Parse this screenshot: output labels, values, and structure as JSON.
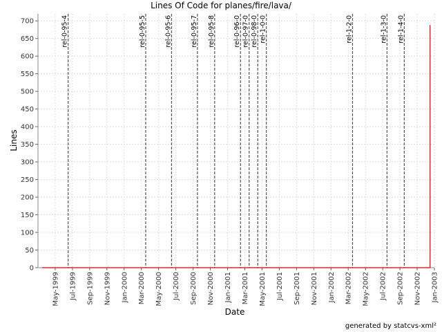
{
  "chart_data": {
    "type": "line",
    "title": "Lines Of Code for planes/fire/lava/",
    "x_label": "Date",
    "y_label": "Lines",
    "footer": "generated by statcvs-xml²",
    "xlim": [
      "1999-03",
      "2003-01"
    ],
    "ylim": [
      0,
      720
    ],
    "xticks": [
      {
        "value": "1999-05",
        "label": "May-1999"
      },
      {
        "value": "1999-07",
        "label": "Jul-1999"
      },
      {
        "value": "1999-09",
        "label": "Sep-1999"
      },
      {
        "value": "1999-11",
        "label": "Nov-1999"
      },
      {
        "value": "2000-01",
        "label": "Jan-2000"
      },
      {
        "value": "2000-03",
        "label": "Mar-2000"
      },
      {
        "value": "2000-05",
        "label": "May-2000"
      },
      {
        "value": "2000-07",
        "label": "Jul-2000"
      },
      {
        "value": "2000-09",
        "label": "Sep-2000"
      },
      {
        "value": "2000-11",
        "label": "Nov-2000"
      },
      {
        "value": "2001-01",
        "label": "Jan-2001"
      },
      {
        "value": "2001-03",
        "label": "Mar-2001"
      },
      {
        "value": "2001-05",
        "label": "May-2001"
      },
      {
        "value": "2001-07",
        "label": "Jul-2001"
      },
      {
        "value": "2001-09",
        "label": "Sep-2001"
      },
      {
        "value": "2001-11",
        "label": "Nov-2001"
      },
      {
        "value": "2002-01",
        "label": "Jan-2002"
      },
      {
        "value": "2002-03",
        "label": "Mar-2002"
      },
      {
        "value": "2002-05",
        "label": "May-2002"
      },
      {
        "value": "2002-07",
        "label": "Jul-2002"
      },
      {
        "value": "2002-09",
        "label": "Sep-2002"
      },
      {
        "value": "2002-11",
        "label": "Nov-2002"
      },
      {
        "value": "2003-01",
        "label": "Jan-2003"
      }
    ],
    "yticks": [
      0,
      50,
      100,
      150,
      200,
      250,
      300,
      350,
      400,
      450,
      500,
      550,
      600,
      650,
      700
    ],
    "grid": true,
    "series": [
      {
        "name": "Lines",
        "color": "#cc0000",
        "x": [
          "1999-03",
          "2002-12",
          "2002-12"
        ],
        "values": [
          0,
          0,
          688
        ]
      }
    ],
    "markers": [
      {
        "label": "rel-0-95-4",
        "x": "1999-06"
      },
      {
        "label": "rel-0-95-5",
        "x": "2000-03"
      },
      {
        "label": "rel-0-95-6",
        "x": "2000-06"
      },
      {
        "label": "rel-0-95-7",
        "x": "2000-09"
      },
      {
        "label": "rel-0-95-8",
        "x": "2000-11"
      },
      {
        "label": "rel-0-96-0",
        "x": "2001-02"
      },
      {
        "label": "rel-0-97-0",
        "x": "2001-03"
      },
      {
        "label": "rel-0-98-0",
        "x": "2001-04"
      },
      {
        "label": "rel-1-0-0",
        "x": "2001-05"
      },
      {
        "label": "rel-1-2-0",
        "x": "2002-03"
      },
      {
        "label": "rel-1-3-0",
        "x": "2002-07"
      },
      {
        "label": "rel-1-4-0",
        "x": "2002-09"
      }
    ]
  }
}
